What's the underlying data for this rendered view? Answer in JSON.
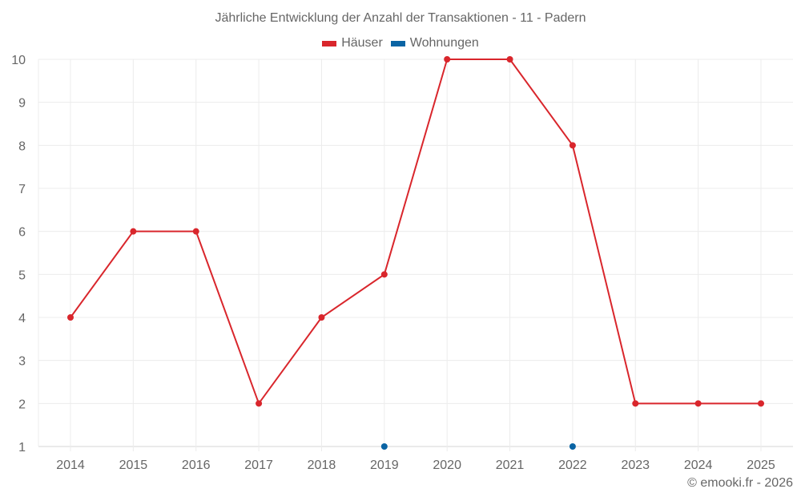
{
  "chart_data": {
    "type": "line",
    "title": "Jährliche Entwicklung der Anzahl der Transaktionen - 11 - Padern",
    "xlabel": "",
    "ylabel": "",
    "categories": [
      "2014",
      "2015",
      "2016",
      "2017",
      "2018",
      "2019",
      "2020",
      "2021",
      "2022",
      "2023",
      "2024",
      "2025"
    ],
    "series": [
      {
        "name": "Häuser",
        "color": "#d9262c",
        "values": [
          4,
          6,
          6,
          2,
          4,
          5,
          10,
          10,
          8,
          2,
          2,
          2
        ]
      },
      {
        "name": "Wohnungen",
        "color": "#0a64a4",
        "values": [
          null,
          null,
          null,
          null,
          null,
          1,
          null,
          null,
          1,
          null,
          null,
          null
        ]
      }
    ],
    "ylim": [
      1,
      10
    ],
    "yticks": [
      "1",
      "2",
      "3",
      "4",
      "5",
      "6",
      "7",
      "8",
      "9",
      "10"
    ],
    "grid": true,
    "legend_position": "top-center"
  },
  "legend": {
    "items": [
      {
        "label": "Häuser",
        "color": "#d9262c"
      },
      {
        "label": "Wohnungen",
        "color": "#0a64a4"
      }
    ]
  },
  "credit": "© emooki.fr - 2026"
}
